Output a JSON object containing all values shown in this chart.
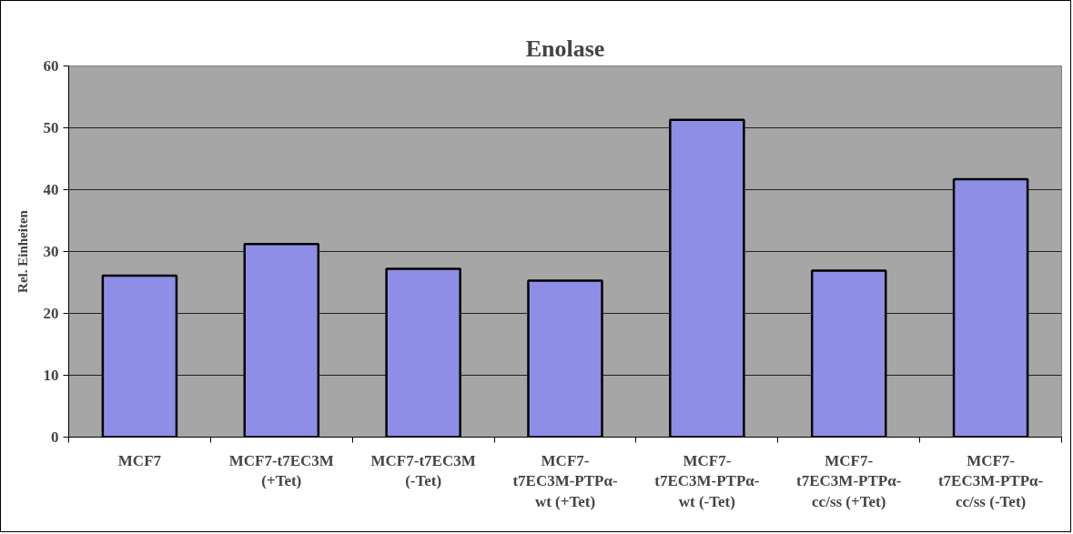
{
  "chart_data": {
    "type": "bar",
    "title": "Enolase",
    "ylabel": "Rel. Einheiten",
    "categories": [
      "MCF7",
      "MCF7-t7EC3M (+Tet)",
      "MCF7-t7EC3M (-Tet)",
      "MCF7-t7EC3M-PTPα-wt (+Tet)",
      "MCF7-t7EC3M-PTPα-wt (-Tet)",
      "MCF7-t7EC3M-PTPα-cc/ss (+Tet)",
      "MCF7-t7EC3M-PTPα-cc/ss (-Tet)"
    ],
    "values": [
      26.1,
      31.2,
      27.2,
      25.3,
      51.3,
      26.9,
      41.7
    ],
    "color": "#8e8ee6",
    "ylim": [
      0,
      60
    ],
    "yticks": [
      0,
      10,
      20,
      30,
      40,
      50,
      60
    ],
    "grid": "y"
  }
}
